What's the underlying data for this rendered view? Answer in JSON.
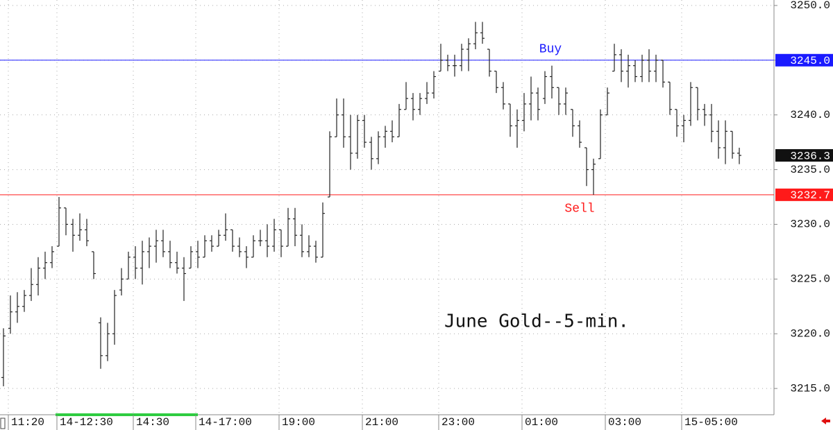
{
  "chart_data": {
    "type": "ohlc",
    "annotation": "June Gold--5-min.",
    "color": "#222222",
    "categories": [
      null,
      "11:20",
      null,
      null,
      null,
      null,
      null,
      null,
      "14-12:30",
      null,
      null,
      null,
      null,
      null,
      null,
      null,
      null,
      null,
      null,
      "14:30",
      null,
      null,
      null,
      null,
      null,
      null,
      null,
      null,
      "14-17:00",
      null,
      null,
      null,
      null,
      null,
      null,
      null,
      null,
      null,
      null,
      null,
      "19:00",
      null,
      null,
      null,
      null,
      null,
      null,
      null,
      null,
      null,
      null,
      null,
      "21:00",
      null,
      null,
      null,
      null,
      null,
      null,
      null,
      null,
      null,
      null,
      "23:00",
      null,
      null,
      null,
      null,
      null,
      null,
      null,
      null,
      null,
      null,
      null,
      "01:00",
      null,
      null,
      null,
      null,
      null,
      null,
      null,
      null,
      null,
      null,
      null,
      "03:00",
      null,
      null,
      null,
      null,
      null,
      null,
      null,
      null,
      null,
      null,
      "15-05:00",
      null,
      null,
      null,
      null,
      null,
      null,
      null,
      null
    ],
    "open": [
      3216,
      3220.5,
      3222,
      3222.5,
      3223.5,
      3224.5,
      3226,
      3226.5,
      3228,
      3231.5,
      3230,
      3229,
      3229.5,
      3227.5,
      3221,
      3218,
      3220,
      3224,
      3225,
      3227,
      3226,
      3227.5,
      3228,
      3228.5,
      3227.5,
      3226.5,
      3226,
      3226,
      3227.5,
      3227,
      3228.5,
      3228,
      3229,
      3229.5,
      3228,
      3227.5,
      3227,
      3228.5,
      3228.5,
      3228,
      3229.5,
      3228,
      3230.5,
      3229,
      3227.5,
      3228,
      3227,
      3232.5,
      3238,
      3240,
      3238,
      3236.5,
      3239.5,
      3237.5,
      3236,
      3238,
      3238.5,
      3238,
      3240.5,
      3241.5,
      3240.5,
      3241.5,
      3242,
      3244,
      3245,
      3244.5,
      3244.5,
      3246,
      3246.5,
      3247.5,
      3246,
      3244,
      3242.5,
      3241,
      3239,
      3239.5,
      3241,
      3242,
      3241.5,
      3243.5,
      3242.5,
      3241,
      3240.5,
      3239,
      3237,
      3235,
      3236,
      3240,
      3244,
      3245.5,
      3244,
      3244.5,
      3243.5,
      3245,
      3244,
      3245,
      3243,
      3240.5,
      3239,
      3239.5,
      3242.5,
      3240.5,
      3240,
      3238.5,
      3237,
      3238.5,
      3236.5
    ],
    "high": [
      3220.5,
      3223.5,
      3223.8,
      3224,
      3226,
      3227,
      3227.5,
      3228,
      3232.5,
      3231.5,
      3230.5,
      3231,
      3230.5,
      3227.5,
      3221.5,
      3221,
      3224,
      3226,
      3227.5,
      3228,
      3228.5,
      3228.8,
      3229.5,
      3229.5,
      3228.5,
      3227.5,
      3227,
      3228,
      3228.5,
      3229,
      3229,
      3229.5,
      3231,
      3229.5,
      3228.8,
      3228,
      3229,
      3229.5,
      3230,
      3230.5,
      3229.5,
      3231.5,
      3231.5,
      3230,
      3229,
      3228.5,
      3232,
      3238.5,
      3241.5,
      3241.5,
      3240,
      3240,
      3240,
      3238,
      3238.5,
      3239,
      3239.5,
      3241,
      3243,
      3242,
      3242,
      3243,
      3244,
      3246.5,
      3245.5,
      3245.5,
      3246.5,
      3247,
      3248.5,
      3248.5,
      3246,
      3244,
      3243,
      3241,
      3240.5,
      3242,
      3243.5,
      3242.5,
      3244,
      3244.5,
      3242.5,
      3242.5,
      3240.5,
      3239.5,
      3237,
      3236,
      3240.5,
      3242.5,
      3246.5,
      3246,
      3245.5,
      3245,
      3245.5,
      3246,
      3245.5,
      3245,
      3243,
      3240.5,
      3240,
      3243,
      3242.5,
      3241,
      3241,
      3239.5,
      3239.5,
      3238.5,
      3237
    ],
    "low": [
      3215.2,
      3220,
      3221,
      3222,
      3223,
      3223.5,
      3225,
      3226,
      3228,
      3229,
      3227.5,
      3228.5,
      3228,
      3225,
      3216.8,
      3217.5,
      3219,
      3223.5,
      3225,
      3225,
      3224.5,
      3226,
      3226.5,
      3227,
      3226,
      3225.5,
      3223,
      3226,
      3226,
      3227,
      3227.5,
      3228,
      3228.5,
      3227.5,
      3227,
      3226,
      3227,
      3228,
      3227,
      3227.5,
      3227,
      3228,
      3228,
      3227,
      3227,
      3226.5,
      3227,
      3232.5,
      3238,
      3237,
      3235,
      3236,
      3237,
      3235,
      3235.5,
      3237,
      3237.5,
      3238,
      3240.5,
      3239.5,
      3240,
      3241,
      3241.5,
      3244,
      3244,
      3243.5,
      3244,
      3244,
      3246,
      3246.5,
      3243.5,
      3242,
      3240.5,
      3238,
      3237,
      3238.5,
      3239.5,
      3239.5,
      3241,
      3241.5,
      3240,
      3240,
      3238,
      3237,
      3233.5,
      3232.7,
      3236,
      3240,
      3244,
      3243,
      3242.5,
      3243,
      3243,
      3243,
      3243,
      3242.5,
      3240,
      3238,
      3237.5,
      3239,
      3239.5,
      3239,
      3237.5,
      3236,
      3235.5,
      3236,
      3235.5
    ],
    "close": [
      3219.8,
      3222,
      3222.5,
      3223.5,
      3224.5,
      3226,
      3226.5,
      3227.5,
      3231.5,
      3230,
      3229,
      3229.5,
      3228.5,
      3225.5,
      3218,
      3220,
      3223.5,
      3225,
      3227,
      3226,
      3227.5,
      3228,
      3228.5,
      3227.5,
      3226.5,
      3226,
      3225.5,
      3227.5,
      3227,
      3228.5,
      3228,
      3229,
      3229.5,
      3228,
      3227.5,
      3227,
      3228.5,
      3228.5,
      3228,
      3229.5,
      3228,
      3230.5,
      3229,
      3227.5,
      3228,
      3227,
      3231,
      3238,
      3240,
      3238,
      3236.5,
      3239.5,
      3237.5,
      3236,
      3238,
      3238.5,
      3238,
      3240.5,
      3241.5,
      3240.5,
      3241.5,
      3242,
      3243.5,
      3245,
      3244.5,
      3244.5,
      3246,
      3246.5,
      3247.5,
      3247,
      3244,
      3242.5,
      3241,
      3239,
      3239.5,
      3241,
      3242,
      3240.5,
      3243.5,
      3242.5,
      3241,
      3242,
      3239,
      3237.5,
      3235,
      3235.5,
      3240,
      3242,
      3245.5,
      3244,
      3244.5,
      3243.5,
      3245,
      3244,
      3245,
      3243,
      3240.5,
      3239,
      3239.5,
      3242.5,
      3240.5,
      3240,
      3238.5,
      3237,
      3238.5,
      3236.5,
      3236.3
    ],
    "lines": [
      {
        "name": "Buy",
        "value": 3245,
        "value_label": "3245.0",
        "color": "#1a1aff"
      },
      {
        "name": "Sell",
        "value": 3232.7,
        "color": "#ff1a1a"
      }
    ],
    "ylim": [
      3212.6,
      3250.5
    ],
    "yticks": [
      {
        "value": 3215,
        "label": "3215.0"
      },
      {
        "value": 3220,
        "label": "3220.0"
      },
      {
        "value": 3225,
        "label": "3225.0"
      },
      {
        "value": 3230,
        "label": "3230.0"
      },
      {
        "value": 3235,
        "label": "3235.0"
      },
      {
        "value": 3240,
        "label": "3240.0"
      },
      {
        "value": 3245,
        "label": "3245.0"
      },
      {
        "value": 3250,
        "label": "3250.0"
      }
    ],
    "grid": true
  }
}
